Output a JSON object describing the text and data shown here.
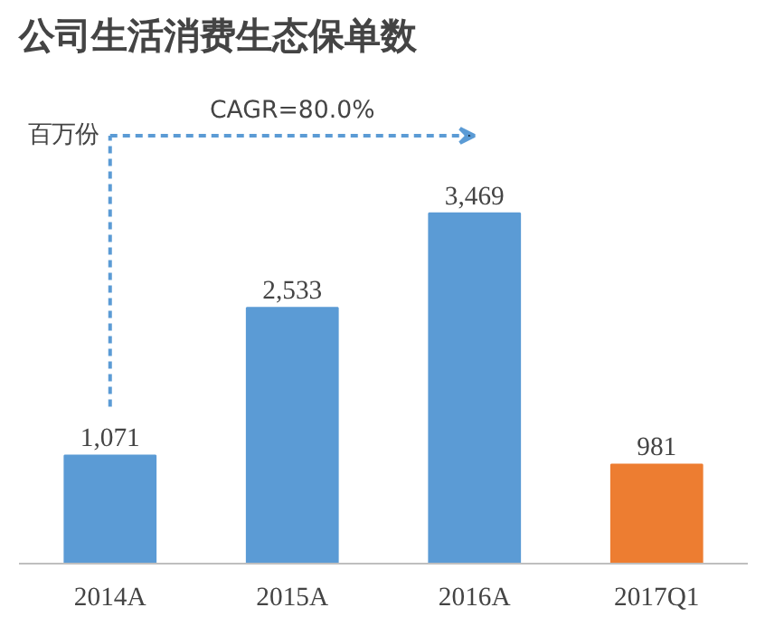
{
  "chart_data": {
    "type": "bar",
    "title": "公司生活消费生态保单数",
    "ylabel": "百万份",
    "categories": [
      "2014A",
      "2015A",
      "2016A",
      "2017Q1"
    ],
    "values": [
      1071,
      2533,
      3469,
      981
    ],
    "colors": [
      "#5b9bd5",
      "#5b9bd5",
      "#5b9bd5",
      "#ed7d31"
    ],
    "value_labels": [
      "1,071",
      "2,533",
      "3,469",
      "981"
    ],
    "grid": false,
    "annotations": [
      "CAGR=80.0%"
    ]
  }
}
